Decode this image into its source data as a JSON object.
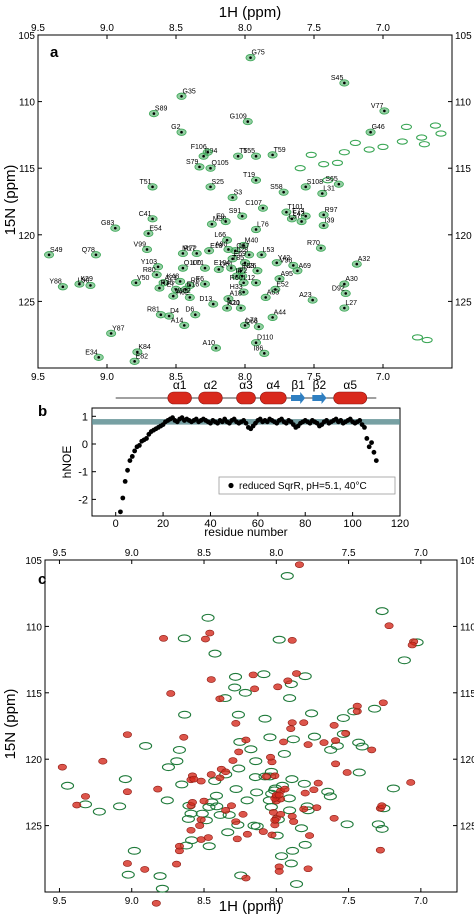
{
  "chart_data": [
    {
      "panel_label": "a",
      "type": "scatter",
      "xlabel": "1H (ppm)",
      "ylabel": "15N (ppm)",
      "xlim": [
        9.5,
        6.5
      ],
      "ylim": [
        105,
        130
      ],
      "x_ticks": [
        9.5,
        9.0,
        8.5,
        8.0,
        7.5,
        7.0
      ],
      "y_ticks": [
        105,
        110,
        115,
        120,
        125
      ],
      "color": "#3aa655",
      "points": [
        {
          "label": "G75",
          "x": 7.96,
          "y": 106.7
        },
        {
          "label": "S45",
          "x": 7.28,
          "y": 108.6
        },
        {
          "label": "G35",
          "x": 8.46,
          "y": 109.6
        },
        {
          "label": "V77",
          "x": 6.99,
          "y": 110.7
        },
        {
          "label": "S89",
          "x": 8.66,
          "y": 110.9
        },
        {
          "label": "G109",
          "x": 7.98,
          "y": 111.5
        },
        {
          "label": "G46",
          "x": 7.09,
          "y": 112.3
        },
        {
          "label": "G2",
          "x": 8.46,
          "y": 112.3
        },
        {
          "label": "R94",
          "x": 8.3,
          "y": 114.1
        },
        {
          "label": "F106",
          "x": 8.27,
          "y": 113.8
        },
        {
          "label": "T5",
          "x": 8.05,
          "y": 114.1
        },
        {
          "label": "T55",
          "x": 7.92,
          "y": 114.1
        },
        {
          "label": "T59",
          "x": 7.8,
          "y": 114.0
        },
        {
          "label": "S79",
          "x": 8.33,
          "y": 114.9
        },
        {
          "label": "Q105",
          "x": 8.25,
          "y": 115.0
        },
        {
          "label": "T19",
          "x": 7.92,
          "y": 115.9
        },
        {
          "label": "S25",
          "x": 8.25,
          "y": 116.4
        },
        {
          "label": "S58",
          "x": 7.72,
          "y": 116.8
        },
        {
          "label": "S108",
          "x": 7.56,
          "y": 116.4
        },
        {
          "label": "S65",
          "x": 7.32,
          "y": 116.2
        },
        {
          "label": "L31",
          "x": 7.44,
          "y": 116.9
        },
        {
          "label": "T51",
          "x": 8.67,
          "y": 116.4
        },
        {
          "label": "S3",
          "x": 8.09,
          "y": 117.2
        },
        {
          "label": "C107",
          "x": 7.87,
          "y": 118.0
        },
        {
          "label": "T101",
          "x": 7.7,
          "y": 118.3
        },
        {
          "label": "E74",
          "x": 7.56,
          "y": 118.6
        },
        {
          "label": "R97",
          "x": 7.43,
          "y": 118.5
        },
        {
          "label": "S91",
          "x": 8.02,
          "y": 118.6
        },
        {
          "label": "L43",
          "x": 7.66,
          "y": 118.8
        },
        {
          "label": "L57",
          "x": 7.59,
          "y": 119.0
        },
        {
          "label": "M38",
          "x": 8.24,
          "y": 119.2
        },
        {
          "label": "E9",
          "x": 8.14,
          "y": 119.0
        },
        {
          "label": "I39",
          "x": 7.43,
          "y": 119.3
        },
        {
          "label": "C41",
          "x": 8.67,
          "y": 118.8
        },
        {
          "label": "L76",
          "x": 7.92,
          "y": 119.6
        },
        {
          "label": "G83",
          "x": 8.94,
          "y": 119.5
        },
        {
          "label": "E54",
          "x": 8.7,
          "y": 119.9
        },
        {
          "label": "L66",
          "x": 8.13,
          "y": 120.4
        },
        {
          "label": "M40",
          "x": 8.01,
          "y": 120.8
        },
        {
          "label": "R70",
          "x": 7.45,
          "y": 121.0
        },
        {
          "label": "E18",
          "x": 8.26,
          "y": 121.2
        },
        {
          "label": "A90",
          "x": 8.12,
          "y": 121.1
        },
        {
          "label": "Q67",
          "x": 8.07,
          "y": 121.2
        },
        {
          "label": "L28",
          "x": 7.97,
          "y": 121.5
        },
        {
          "label": "L53",
          "x": 7.88,
          "y": 121.5
        },
        {
          "label": "V99",
          "x": 8.71,
          "y": 121.1
        },
        {
          "label": "R72",
          "x": 8.45,
          "y": 121.4
        },
        {
          "label": "M17",
          "x": 8.35,
          "y": 121.4
        },
        {
          "label": "S49",
          "x": 9.42,
          "y": 121.5
        },
        {
          "label": "Q78",
          "x": 9.08,
          "y": 121.5
        },
        {
          "label": "E69",
          "x": 8.09,
          "y": 121.8
        },
        {
          "label": "T85",
          "x": 8.0,
          "y": 122.1
        },
        {
          "label": "Y42",
          "x": 7.77,
          "y": 122.1
        },
        {
          "label": "V98",
          "x": 7.65,
          "y": 122.3
        },
        {
          "label": "A32",
          "x": 7.19,
          "y": 122.2
        },
        {
          "label": "Y103",
          "x": 8.63,
          "y": 122.4
        },
        {
          "label": "Q100",
          "x": 8.45,
          "y": 122.5
        },
        {
          "label": "L71",
          "x": 8.29,
          "y": 122.5
        },
        {
          "label": "Q61",
          "x": 8.19,
          "y": 122.6
        },
        {
          "label": "E104",
          "x": 8.1,
          "y": 122.5
        },
        {
          "label": "E33",
          "x": 8.03,
          "y": 122.7
        },
        {
          "label": "N26",
          "x": 7.91,
          "y": 122.7
        },
        {
          "label": "A69",
          "x": 7.62,
          "y": 122.7
        },
        {
          "label": "R80",
          "x": 8.64,
          "y": 123.0
        },
        {
          "label": "I22",
          "x": 8.06,
          "y": 123.1
        },
        {
          "label": "I4",
          "x": 8.02,
          "y": 123.1
        },
        {
          "label": "A95",
          "x": 7.75,
          "y": 123.3
        },
        {
          "label": "K48",
          "x": 8.47,
          "y": 123.5
        },
        {
          "label": "A21",
          "x": 8.59,
          "y": 123.6
        },
        {
          "label": "R60",
          "x": 8.01,
          "y": 123.6
        },
        {
          "label": "V50",
          "x": 8.79,
          "y": 123.6
        },
        {
          "label": "L12",
          "x": 7.92,
          "y": 123.6
        },
        {
          "label": "R8",
          "x": 8.4,
          "y": 123.8
        },
        {
          "label": "F6",
          "x": 8.29,
          "y": 123.7
        },
        {
          "label": "A30",
          "x": 7.28,
          "y": 123.7
        },
        {
          "label": "Y88",
          "x": 9.32,
          "y": 123.9
        },
        {
          "label": "K29",
          "x": 9.2,
          "y": 123.7
        },
        {
          "label": "L90",
          "x": 9.12,
          "y": 123.8
        },
        {
          "label": "R36",
          "x": 8.62,
          "y": 124.0
        },
        {
          "label": "E7",
          "x": 8.5,
          "y": 124.1
        },
        {
          "label": "E16",
          "x": 8.43,
          "y": 124.1
        },
        {
          "label": "H33",
          "x": 8.01,
          "y": 124.3
        },
        {
          "label": "E52",
          "x": 7.78,
          "y": 124.1
        },
        {
          "label": "D92",
          "x": 7.27,
          "y": 124.4
        },
        {
          "label": "V102",
          "x": 8.52,
          "y": 124.6
        },
        {
          "label": "A62",
          "x": 8.4,
          "y": 124.7
        },
        {
          "label": "A18",
          "x": 8.12,
          "y": 124.8
        },
        {
          "label": "D13",
          "x": 8.23,
          "y": 125.2
        },
        {
          "label": "A63",
          "x": 7.85,
          "y": 124.7
        },
        {
          "label": "A23",
          "x": 7.51,
          "y": 124.9
        },
        {
          "label": "A11",
          "x": 8.13,
          "y": 125.5
        },
        {
          "label": "R20",
          "x": 8.03,
          "y": 125.5
        },
        {
          "label": "L27",
          "x": 7.28,
          "y": 125.5
        },
        {
          "label": "R81",
          "x": 8.61,
          "y": 126.0
        },
        {
          "label": "D4",
          "x": 8.55,
          "y": 126.1
        },
        {
          "label": "D6",
          "x": 8.36,
          "y": 126.0
        },
        {
          "label": "A44",
          "x": 7.8,
          "y": 126.2
        },
        {
          "label": "A14",
          "x": 8.44,
          "y": 126.8
        },
        {
          "label": "L73",
          "x": 8.0,
          "y": 126.8
        },
        {
          "label": "Q66",
          "x": 7.9,
          "y": 126.9
        },
        {
          "label": "Y87",
          "x": 8.97,
          "y": 127.4
        },
        {
          "label": "A10",
          "x": 8.21,
          "y": 128.5
        },
        {
          "label": "D110",
          "x": 7.92,
          "y": 128.1
        },
        {
          "label": "I86",
          "x": 7.86,
          "y": 128.9
        },
        {
          "label": "K84",
          "x": 8.78,
          "y": 128.8
        },
        {
          "label": "E34",
          "x": 9.06,
          "y": 129.2
        },
        {
          "label": "E82",
          "x": 8.8,
          "y": 129.5
        }
      ]
    },
    {
      "panel_label": "b",
      "type": "scatter",
      "xlabel": "residue number",
      "ylabel": "hNOE",
      "xlim": [
        -10,
        120
      ],
      "ylim": [
        -2.6,
        1.3
      ],
      "x_ticks": [
        0,
        20,
        40,
        60,
        80,
        100,
        120
      ],
      "y_ticks": [
        -2,
        -1,
        0,
        1
      ],
      "legend": "reduced SqrR, pH=5.1, 40°C",
      "legend_position": "bottom-right",
      "reference_band": [
        0.7,
        0.9
      ],
      "secondary_structure": [
        {
          "label": "α1",
          "kind": "helix",
          "start": 22,
          "end": 32
        },
        {
          "label": "α2",
          "kind": "helix",
          "start": 35,
          "end": 45
        },
        {
          "label": "α3",
          "kind": "helix",
          "start": 51,
          "end": 59
        },
        {
          "label": "α4",
          "kind": "helix",
          "start": 61,
          "end": 72
        },
        {
          "label": "β1",
          "kind": "strand",
          "start": 74,
          "end": 80
        },
        {
          "label": "β2",
          "kind": "strand",
          "start": 83,
          "end": 89
        },
        {
          "label": "α5",
          "kind": "helix",
          "start": 92,
          "end": 106
        }
      ],
      "series": [
        {
          "x": [
            2,
            3,
            4,
            5,
            6,
            7,
            8,
            9,
            10,
            11,
            12,
            13,
            14,
            15,
            16,
            17,
            18,
            19,
            20,
            21,
            22,
            23,
            24,
            25,
            26,
            27,
            28,
            29,
            30,
            31,
            32,
            33,
            34,
            35,
            36,
            37,
            38,
            39,
            40,
            41,
            42,
            43,
            44,
            45,
            46,
            47,
            48,
            49,
            50,
            51,
            52,
            53,
            54,
            55,
            56,
            57,
            58,
            59,
            60,
            61,
            62,
            63,
            64,
            65,
            66,
            67,
            68,
            69,
            70,
            71,
            72,
            73,
            74,
            75,
            76,
            77,
            78,
            79,
            80,
            81,
            82,
            83,
            84,
            85,
            86,
            87,
            88,
            89,
            90,
            91,
            92,
            93,
            94,
            95,
            96,
            97,
            98,
            99,
            100,
            101,
            102,
            103,
            104,
            105,
            106,
            107,
            108,
            109,
            110
          ],
          "y": [
            -2.45,
            -1.95,
            -1.35,
            -0.95,
            -0.6,
            -0.45,
            -0.25,
            -0.1,
            -0.05,
            0.1,
            0.15,
            0.2,
            0.35,
            0.45,
            0.5,
            0.55,
            0.6,
            0.65,
            0.7,
            0.8,
            0.85,
            0.9,
            0.95,
            0.85,
            0.8,
            0.9,
            0.95,
            0.85,
            0.9,
            0.85,
            0.8,
            0.85,
            0.9,
            0.8,
            0.85,
            0.9,
            0.85,
            0.8,
            0.75,
            0.85,
            0.8,
            0.75,
            0.85,
            0.8,
            0.9,
            0.8,
            0.75,
            0.85,
            0.9,
            0.8,
            0.75,
            0.8,
            0.85,
            0.75,
            0.6,
            0.55,
            0.65,
            0.75,
            0.85,
            0.9,
            0.8,
            0.85,
            0.8,
            0.9,
            0.85,
            0.8,
            0.75,
            0.85,
            0.9,
            0.8,
            0.75,
            0.85,
            0.8,
            0.7,
            0.6,
            0.65,
            0.75,
            0.8,
            0.85,
            0.8,
            0.75,
            0.85,
            0.8,
            0.75,
            0.65,
            0.7,
            0.8,
            0.85,
            0.75,
            0.8,
            0.85,
            0.9,
            0.8,
            0.85,
            0.75,
            0.8,
            0.85,
            0.9,
            0.8,
            0.75,
            0.8,
            0.85,
            0.7,
            0.6,
            0.2,
            -0.1,
            0.05,
            -0.3,
            -0.6
          ]
        }
      ]
    },
    {
      "panel_label": "c",
      "type": "scatter",
      "xlabel": "1H (ppm)",
      "ylabel": "15N (ppm)",
      "xlim": [
        9.6,
        6.75
      ],
      "ylim": [
        105,
        130
      ],
      "x_ticks": [
        9.5,
        9.0,
        8.5,
        8.0,
        7.5,
        7.0
      ],
      "y_ticks": [
        105,
        110,
        115,
        120,
        125
      ],
      "colors": {
        "reference": "#1f7a3a",
        "overlay": "#d42a1e"
      }
    }
  ]
}
